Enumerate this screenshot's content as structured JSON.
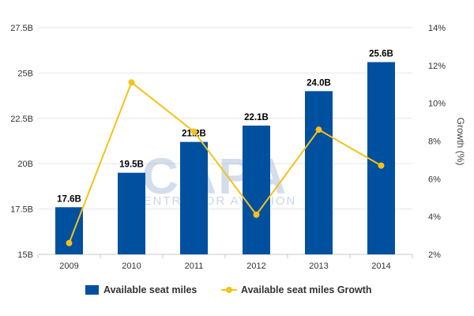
{
  "chart_data": {
    "type": "bar",
    "categories": [
      "2009",
      "2010",
      "2011",
      "2012",
      "2013",
      "2014"
    ],
    "series": [
      {
        "name": "Available seat miles",
        "type": "bar",
        "axis": "left",
        "color": "#0050a0",
        "values": [
          17.6,
          19.5,
          21.2,
          22.1,
          24.0,
          25.6
        ],
        "data_labels": [
          "17.6B",
          "19.5B",
          "21.2B",
          "22.1B",
          "24.0B",
          "25.6B"
        ]
      },
      {
        "name": "Available seat miles Growth",
        "type": "line",
        "axis": "right",
        "color": "#f5c218",
        "values": [
          2.6,
          11.1,
          8.5,
          4.1,
          8.6,
          6.7
        ]
      }
    ],
    "left_axis": {
      "min": 15,
      "max": 27.5,
      "ticks": [
        15,
        17.5,
        20,
        22.5,
        25,
        27.5
      ],
      "tick_labels": [
        "15B",
        "17.5B",
        "20B",
        "22.5B",
        "25B",
        "27.5B"
      ]
    },
    "right_axis": {
      "min": 2,
      "max": 14,
      "ticks": [
        2,
        4,
        6,
        8,
        10,
        12,
        14
      ],
      "tick_labels": [
        "2%",
        "4%",
        "6%",
        "8%",
        "10%",
        "12%",
        "14%"
      ],
      "label": "Growth (%)"
    },
    "grid": true,
    "legend": "bottom",
    "watermark": {
      "line1": "CAPA",
      "line2": "CENTRE FOR AVIATION"
    }
  }
}
